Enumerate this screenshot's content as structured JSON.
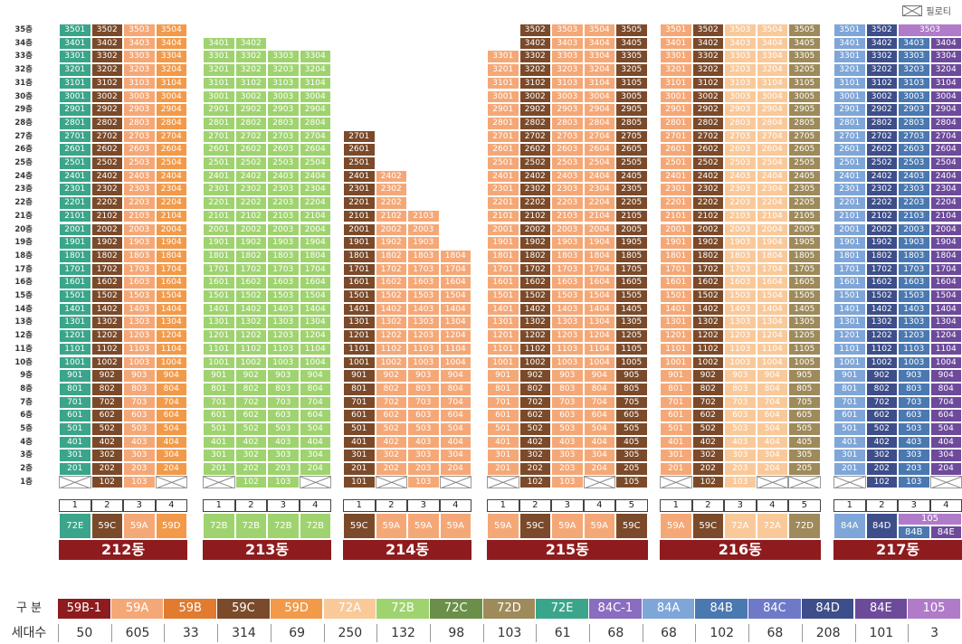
{
  "colors": {
    "59B-1": "#8e1b1d",
    "59A": "#f5a877",
    "59B": "#e07b2f",
    "59C": "#7b4a2a",
    "59D": "#f29a4a",
    "72A": "#fac99a",
    "72B": "#9fd36f",
    "72C": "#6b8f49",
    "72D": "#9e8a5a",
    "72E": "#3aa58a",
    "84C-1": "#8a6cc1",
    "84A": "#7fa6d8",
    "84B": "#4a78b0",
    "84C": "#6e79c8",
    "84D": "#3d4e8a",
    "84E": "#6d4a9a",
    "105": "#b07bc8"
  },
  "piloti_label": "필로티",
  "floor_labels": [
    "35층",
    "34층",
    "33층",
    "32층",
    "31층",
    "30층",
    "29층",
    "28층",
    "27층",
    "26층",
    "25층",
    "24층",
    "23층",
    "22층",
    "21층",
    "20층",
    "19층",
    "18층",
    "17층",
    "16층",
    "15층",
    "14층",
    "13층",
    "12층",
    "11층",
    "10층",
    "9층",
    "8층",
    "7층",
    "6층",
    "5층",
    "4층",
    "3층",
    "2층",
    "1층"
  ],
  "buildings": [
    {
      "name": "212동",
      "lines": [
        {
          "num": "1",
          "type": "72E",
          "top": 35,
          "bottom": 2,
          "piloti1": true
        },
        {
          "num": "2",
          "type": "59C",
          "top": 35,
          "bottom": 1
        },
        {
          "num": "3",
          "type": "59A",
          "top": 35,
          "bottom": 1
        },
        {
          "num": "4",
          "type": "59D",
          "top": 35,
          "bottom": 2,
          "piloti1": true
        }
      ]
    },
    {
      "name": "213동",
      "lines": [
        {
          "num": "1",
          "type": "72B",
          "top": 34,
          "bottom": 2,
          "piloti1": true
        },
        {
          "num": "2",
          "type": "72B",
          "top": 34,
          "bottom": 1
        },
        {
          "num": "3",
          "type": "72B",
          "top": 33,
          "bottom": 1
        },
        {
          "num": "4",
          "type": "72B",
          "top": 33,
          "bottom": 2,
          "piloti1": true
        }
      ]
    },
    {
      "name": "214동",
      "lines": [
        {
          "num": "1",
          "type": "59C",
          "top": 27,
          "bottom": 1
        },
        {
          "num": "2",
          "type": "59A",
          "top": 24,
          "bottom": 2,
          "piloti1": true
        },
        {
          "num": "3",
          "type": "59A",
          "top": 21,
          "bottom": 1
        },
        {
          "num": "4",
          "type": "59A",
          "top": 18,
          "bottom": 2,
          "piloti1": true
        }
      ]
    },
    {
      "name": "215동",
      "lines": [
        {
          "num": "1",
          "type": "59A",
          "top": 33,
          "bottom": 2,
          "piloti1": true
        },
        {
          "num": "2",
          "type": "59C",
          "top": 35,
          "bottom": 1
        },
        {
          "num": "3",
          "type": "59A",
          "top": 35,
          "bottom": 1
        },
        {
          "num": "4",
          "type": "59A",
          "top": 35,
          "bottom": 2,
          "piloti1": true
        },
        {
          "num": "5",
          "type": "59C",
          "top": 35,
          "bottom": 1
        }
      ]
    },
    {
      "name": "216동",
      "lines": [
        {
          "num": "1",
          "type": "59A",
          "top": 35,
          "bottom": 2,
          "piloti1": true
        },
        {
          "num": "2",
          "type": "59C",
          "top": 35,
          "bottom": 1
        },
        {
          "num": "3",
          "type": "72A",
          "top": 35,
          "bottom": 1
        },
        {
          "num": "4",
          "type": "72A",
          "top": 35,
          "bottom": 2,
          "piloti1": true
        },
        {
          "num": "5",
          "type": "72D",
          "top": 35,
          "bottom": 2,
          "piloti1": true
        }
      ]
    },
    {
      "name": "217동",
      "lines": [
        {
          "num": "1",
          "type": "84A",
          "top": 35,
          "bottom": 2,
          "piloti1": true
        },
        {
          "num": "2",
          "type": "84D",
          "top": 35,
          "bottom": 1
        },
        {
          "num": "3",
          "type": "84B",
          "top": 34,
          "bottom": 1,
          "topType": "105",
          "topLabel": "3503"
        },
        {
          "num": "4",
          "type": "84E",
          "top": 34,
          "bottom": 2,
          "piloti1": true
        }
      ],
      "type_labels": {
        "3": "84B",
        "4": "84E",
        "merged": "105"
      }
    }
  ],
  "legend": {
    "header_label": "구 분",
    "count_label": "세대수",
    "items": [
      {
        "type": "59B-1",
        "count": "50"
      },
      {
        "type": "59A",
        "count": "605"
      },
      {
        "type": "59B",
        "count": "33"
      },
      {
        "type": "59C",
        "count": "314"
      },
      {
        "type": "59D",
        "count": "69"
      },
      {
        "type": "72A",
        "count": "250"
      },
      {
        "type": "72B",
        "count": "132"
      },
      {
        "type": "72C",
        "count": "98"
      },
      {
        "type": "72D",
        "count": "103"
      },
      {
        "type": "72E",
        "count": "61"
      },
      {
        "type": "84C-1",
        "count": "68"
      },
      {
        "type": "84A",
        "count": "68"
      },
      {
        "type": "84B",
        "count": "102"
      },
      {
        "type": "84C",
        "count": "68"
      },
      {
        "type": "84D",
        "count": "208"
      },
      {
        "type": "84E",
        "count": "101"
      },
      {
        "type": "105",
        "count": "3"
      }
    ]
  }
}
